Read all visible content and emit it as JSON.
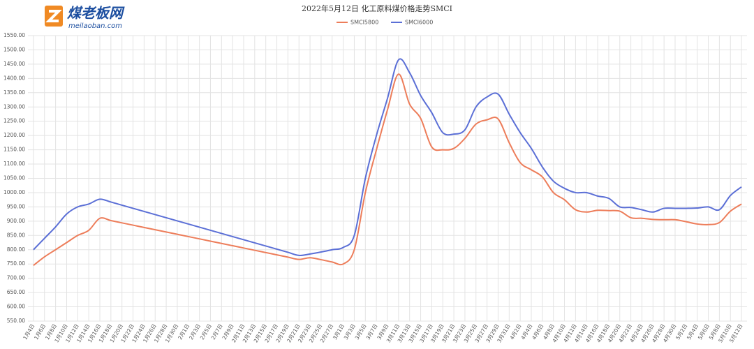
{
  "brand": {
    "name": "煤老板网",
    "url": "meilaoban.com"
  },
  "chart_data": {
    "type": "line",
    "title": "2022年5月12日 化工原料煤价格走势SMCI",
    "grid": true,
    "legend": "top",
    "categories": [
      "1月4日",
      "1月6日",
      "1月8日",
      "1月10日",
      "1月12日",
      "1月14日",
      "1月16日",
      "1月18日",
      "1月20日",
      "1月22日",
      "1月24日",
      "1月26日",
      "1月28日",
      "1月30日",
      "2月1日",
      "2月3日",
      "2月5日",
      "2月7日",
      "2月9日",
      "2月11日",
      "2月13日",
      "2月15日",
      "2月17日",
      "2月19日",
      "2月21日",
      "2月23日",
      "2月25日",
      "2月27日",
      "3月1日",
      "3月3日",
      "3月5日",
      "3月7日",
      "3月9日",
      "3月11日",
      "3月13日",
      "3月15日",
      "3月17日",
      "3月19日",
      "3月21日",
      "3月23日",
      "3月25日",
      "3月27日",
      "3月29日",
      "3月31日",
      "4月2日",
      "4月4日",
      "4月6日",
      "4月8日",
      "4月10日",
      "4月12日",
      "4月14日",
      "4月16日",
      "4月18日",
      "4月20日",
      "4月22日",
      "4月24日",
      "4月26日",
      "4月28日",
      "4月30日",
      "5月2日",
      "5月4日",
      "5月6日",
      "5月8日",
      "5月10日",
      "5月12日"
    ],
    "series": [
      {
        "name": "SMCI5800",
        "color": "#ed7d5a",
        "values": [
          745,
          775,
          800,
          825,
          850,
          868,
          910,
          902,
          894,
          886,
          878,
          870,
          862,
          854,
          846,
          838,
          830,
          822,
          814,
          806,
          798,
          790,
          782,
          774,
          766,
          772,
          765,
          757,
          750,
          800,
          1000,
          1150,
          1290,
          1415,
          1310,
          1260,
          1160,
          1150,
          1155,
          1190,
          1240,
          1255,
          1258,
          1175,
          1105,
          1080,
          1055,
          1000,
          975,
          940,
          932,
          938,
          937,
          935,
          912,
          910,
          906,
          905,
          905,
          898,
          890,
          888,
          895,
          935,
          960
        ]
      },
      {
        "name": "SMCI6000",
        "color": "#5b6fd6",
        "values": [
          800,
          840,
          880,
          925,
          950,
          960,
          977,
          967,
          956,
          945,
          934,
          923,
          912,
          901,
          890,
          879,
          868,
          857,
          846,
          835,
          824,
          813,
          802,
          791,
          780,
          785,
          792,
          800,
          808,
          850,
          1050,
          1200,
          1330,
          1465,
          1420,
          1340,
          1280,
          1210,
          1205,
          1220,
          1300,
          1335,
          1345,
          1275,
          1210,
          1155,
          1090,
          1040,
          1015,
          1000,
          1000,
          988,
          980,
          950,
          948,
          940,
          932,
          945,
          945,
          945,
          946,
          950,
          940,
          990,
          1020
        ]
      }
    ],
    "ylim": [
      550,
      1550
    ],
    "yticks": [
      {
        "value": 550,
        "label": "550.00"
      },
      {
        "value": 600,
        "label": "600.00"
      },
      {
        "value": 650,
        "label": "650.00"
      },
      {
        "value": 700,
        "label": "700.00"
      },
      {
        "value": 750,
        "label": "750.00"
      },
      {
        "value": 800,
        "label": "800.00"
      },
      {
        "value": 850,
        "label": "850.00"
      },
      {
        "value": 900,
        "label": "900.00"
      },
      {
        "value": 950,
        "label": "950.00"
      },
      {
        "value": 1000,
        "label": "1000.00"
      },
      {
        "value": 1050,
        "label": "1050.00"
      },
      {
        "value": 1100,
        "label": "1100.00"
      },
      {
        "value": 1150,
        "label": "1150.00"
      },
      {
        "value": 1200,
        "label": "1200.00"
      },
      {
        "value": 1250,
        "label": "1250.00"
      },
      {
        "value": 1300,
        "label": "1300.00"
      },
      {
        "value": 1350,
        "label": "1350.00"
      },
      {
        "value": 1400,
        "label": "1400.00"
      },
      {
        "value": 1450,
        "label": "1450.00"
      },
      {
        "value": 1500,
        "label": "1500.00"
      },
      {
        "value": 1550,
        "label": "1550.00"
      }
    ]
  }
}
